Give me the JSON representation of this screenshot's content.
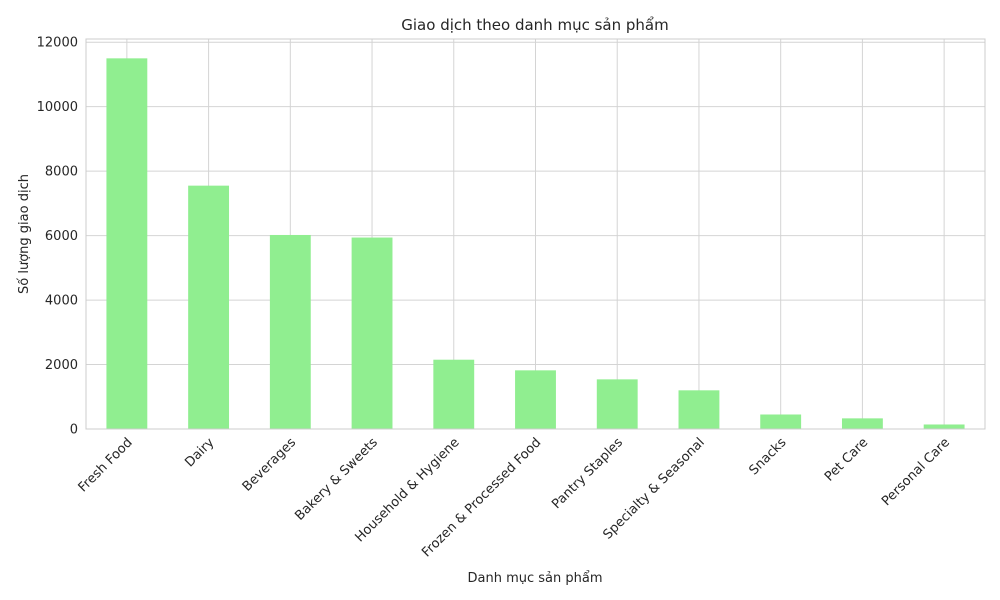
{
  "chart_data": {
    "type": "bar",
    "title": "Giao dịch theo danh mục sản phẩm",
    "xlabel": "Danh mục sản phẩm",
    "ylabel": "Số lượng giao dịch",
    "categories": [
      "Fresh Food",
      "Dairy",
      "Beverages",
      "Bakery & Sweets",
      "Household & Hygiene",
      "Frozen & Processed Food",
      "Pantry Staples",
      "Specialty & Seasonal",
      "Snacks",
      "Pet Care",
      "Personal Care"
    ],
    "values": [
      11500,
      7550,
      6020,
      5940,
      2150,
      1820,
      1540,
      1200,
      450,
      330,
      140
    ],
    "ylim": [
      0,
      12100
    ],
    "yticks": [
      0,
      2000,
      4000,
      6000,
      8000,
      10000,
      12000
    ],
    "grid": true,
    "bar_color": "#90ee90",
    "grid_color": "#d4d4d4"
  }
}
